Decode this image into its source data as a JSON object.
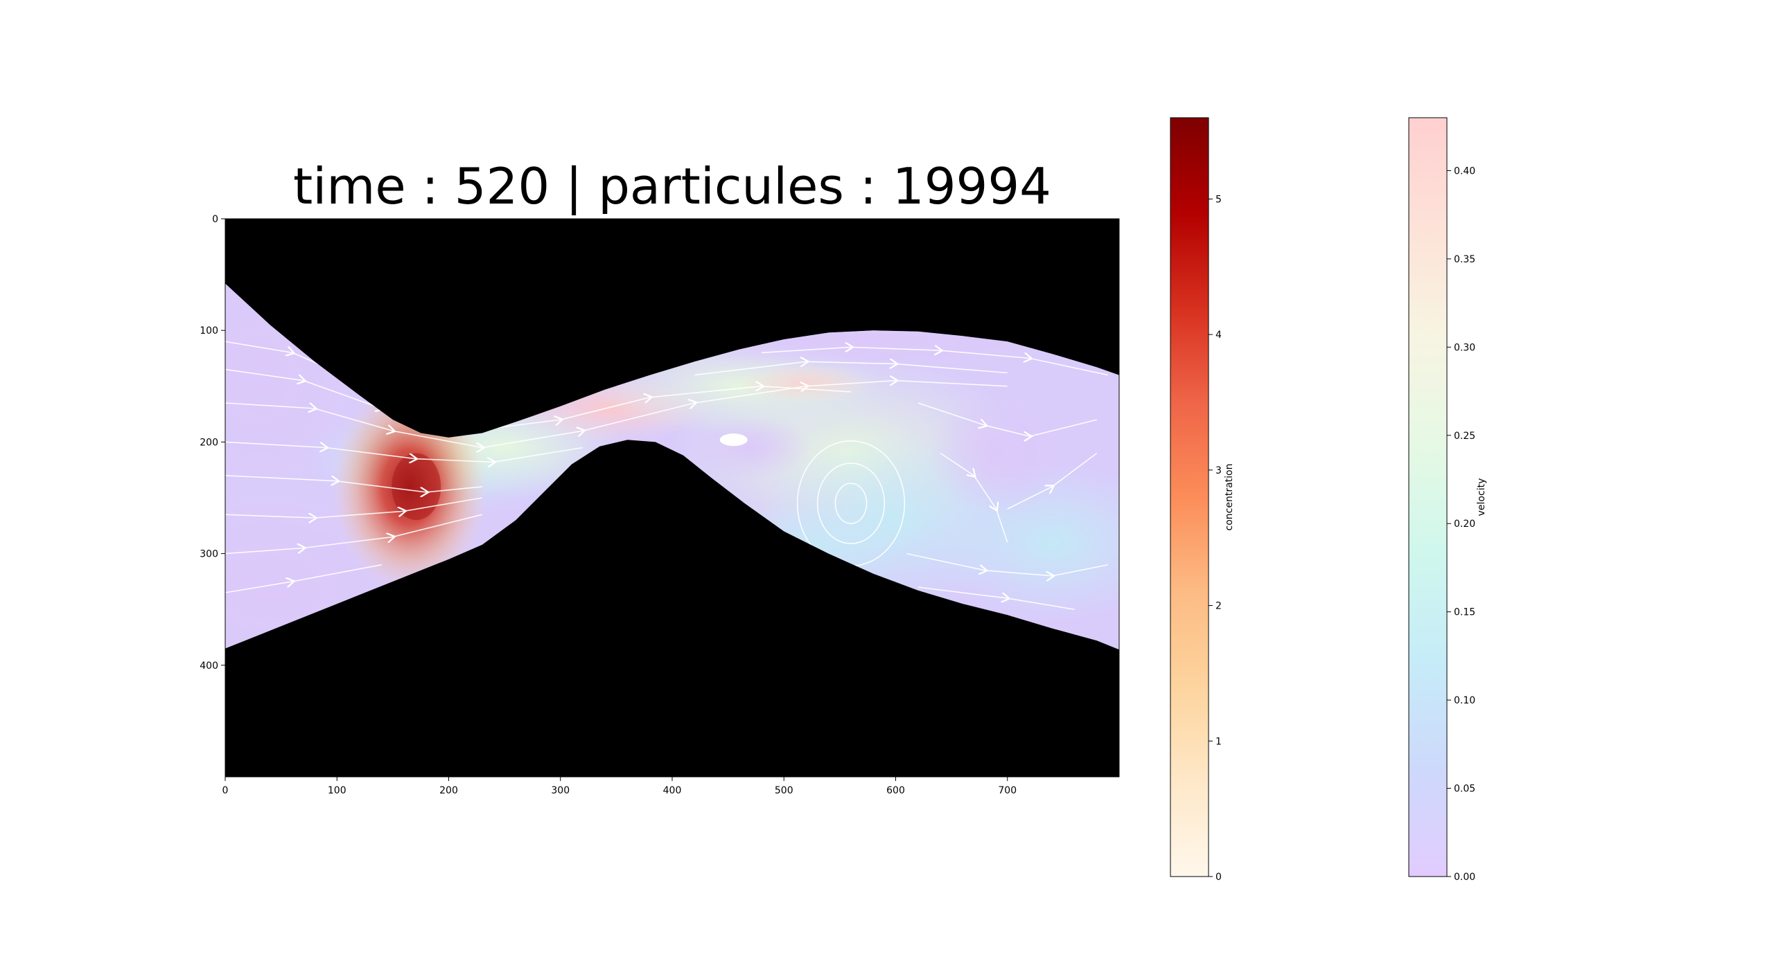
{
  "chart_data": [
    {
      "type": "heatmap",
      "title": "time : 520 | particules : 19994",
      "xlim": [
        0,
        800
      ],
      "ylim": [
        500,
        0
      ],
      "x_ticks": [
        0,
        100,
        200,
        300,
        400,
        500,
        600,
        700
      ],
      "y_ticks": [
        0,
        100,
        200,
        300,
        400
      ],
      "background_color": "#000000",
      "channel": {
        "top_wall": [
          [
            0,
            58
          ],
          [
            40,
            95
          ],
          [
            80,
            128
          ],
          [
            120,
            158
          ],
          [
            150,
            180
          ],
          [
            175,
            192
          ],
          [
            200,
            196
          ],
          [
            230,
            192
          ],
          [
            260,
            182
          ],
          [
            300,
            168
          ],
          [
            340,
            153
          ],
          [
            380,
            140
          ],
          [
            420,
            128
          ],
          [
            460,
            117
          ],
          [
            500,
            108
          ],
          [
            540,
            102
          ],
          [
            580,
            100
          ],
          [
            620,
            101
          ],
          [
            660,
            105
          ],
          [
            700,
            110
          ],
          [
            740,
            121
          ],
          [
            780,
            133
          ],
          [
            800,
            140
          ]
        ],
        "bottom_wall": [
          [
            0,
            385
          ],
          [
            50,
            365
          ],
          [
            100,
            345
          ],
          [
            150,
            325
          ],
          [
            200,
            305
          ],
          [
            230,
            292
          ],
          [
            260,
            270
          ],
          [
            285,
            245
          ],
          [
            310,
            220
          ],
          [
            335,
            204
          ],
          [
            360,
            198
          ],
          [
            385,
            200
          ],
          [
            410,
            212
          ],
          [
            435,
            232
          ],
          [
            465,
            255
          ],
          [
            500,
            280
          ],
          [
            540,
            300
          ],
          [
            580,
            318
          ],
          [
            620,
            333
          ],
          [
            660,
            345
          ],
          [
            700,
            355
          ],
          [
            740,
            367
          ],
          [
            780,
            378
          ],
          [
            800,
            386
          ]
        ],
        "obstacle_blob": {
          "x": 455,
          "y": 198
        }
      },
      "concentration_front": {
        "x": 165,
        "y": 240,
        "peak": 5.5
      },
      "vortex_center": {
        "x": 560,
        "y": 255
      },
      "streamlines": "white"
    },
    {
      "type": "heatmap",
      "role": "colorbar",
      "ylabel": "concentration",
      "ylim": [
        0,
        5.6
      ],
      "ticks": [
        0,
        1,
        2,
        3,
        4,
        5
      ],
      "tick_labels": [
        "0",
        "1",
        "2",
        "3",
        "4",
        "5"
      ],
      "colormap": "OrRd",
      "colors": [
        "#fff7ec",
        "#fee8c8",
        "#fdd49e",
        "#fdbb84",
        "#fc8d59",
        "#ef6548",
        "#d7301f",
        "#b30000",
        "#7f0000"
      ]
    },
    {
      "type": "heatmap",
      "role": "colorbar",
      "ylabel": "velocity",
      "ylim": [
        0,
        0.43
      ],
      "ticks": [
        0.0,
        0.05,
        0.1,
        0.15,
        0.2,
        0.25,
        0.3,
        0.35,
        0.4
      ],
      "tick_labels": [
        "0.00",
        "0.05",
        "0.10",
        "0.15",
        "0.20",
        "0.25",
        "0.30",
        "0.35",
        "0.40"
      ],
      "colormap": "pastel-rainbow",
      "colors": [
        "#e2ccff",
        "#cdd9fb",
        "#c6ecf8",
        "#d0f7ec",
        "#e6f9e4",
        "#f7f4e2",
        "#fde2d8",
        "#ffd0d0"
      ]
    }
  ]
}
